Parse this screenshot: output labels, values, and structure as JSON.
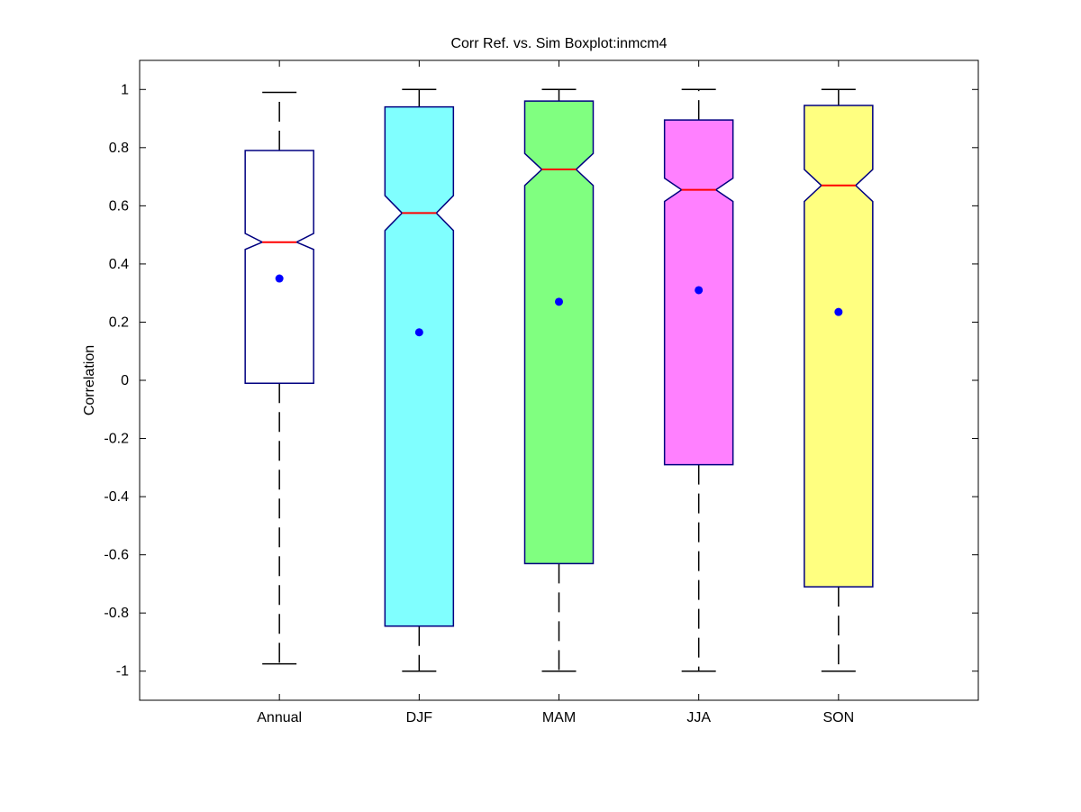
{
  "chart_data": {
    "type": "boxplot",
    "title": "Corr Ref. vs. Sim Boxplot:inmcm4",
    "xlabel": "",
    "ylabel": "Correlation",
    "ylim": [
      -1.1,
      1.1
    ],
    "yticks": [
      -1,
      -0.8,
      -0.6,
      -0.4,
      -0.2,
      0,
      0.2,
      0.4,
      0.6,
      0.8,
      1
    ],
    "ytick_labels": [
      "-1",
      "-0.8",
      "-0.6",
      "-0.4",
      "-0.2",
      "0",
      "0.2",
      "0.4",
      "0.6",
      "0.8",
      "1"
    ],
    "categories": [
      "Annual",
      "DJF",
      "MAM",
      "JJA",
      "SON"
    ],
    "boxes": [
      {
        "category": "Annual",
        "whisker_low": -0.975,
        "q1": -0.01,
        "median": 0.475,
        "q3": 0.79,
        "whisker_high": 0.99,
        "notch_low": 0.45,
        "notch_high": 0.505,
        "mean": 0.35,
        "fill": "#ffffff"
      },
      {
        "category": "DJF",
        "whisker_low": -1.0,
        "q1": -0.845,
        "median": 0.575,
        "q3": 0.94,
        "whisker_high": 1.0,
        "notch_low": 0.515,
        "notch_high": 0.635,
        "mean": 0.165,
        "fill": "#80ffff"
      },
      {
        "category": "MAM",
        "whisker_low": -1.0,
        "q1": -0.63,
        "median": 0.725,
        "q3": 0.96,
        "whisker_high": 1.0,
        "notch_low": 0.67,
        "notch_high": 0.78,
        "mean": 0.27,
        "fill": "#80ff80"
      },
      {
        "category": "JJA",
        "whisker_low": -1.0,
        "q1": -0.29,
        "median": 0.655,
        "q3": 0.895,
        "whisker_high": 1.0,
        "notch_low": 0.615,
        "notch_high": 0.695,
        "mean": 0.31,
        "fill": "#ff80ff"
      },
      {
        "category": "SON",
        "whisker_low": -1.0,
        "q1": -0.71,
        "median": 0.67,
        "q3": 0.945,
        "whisker_high": 1.0,
        "notch_low": 0.615,
        "notch_high": 0.725,
        "mean": 0.235,
        "fill": "#ffff80"
      }
    ],
    "colors": {
      "box_edge": "#000080",
      "median": "#ff0000",
      "mean": "#0000ff",
      "whisker": "#000000",
      "axes": "#000000"
    },
    "grid": false,
    "legend": "none"
  }
}
